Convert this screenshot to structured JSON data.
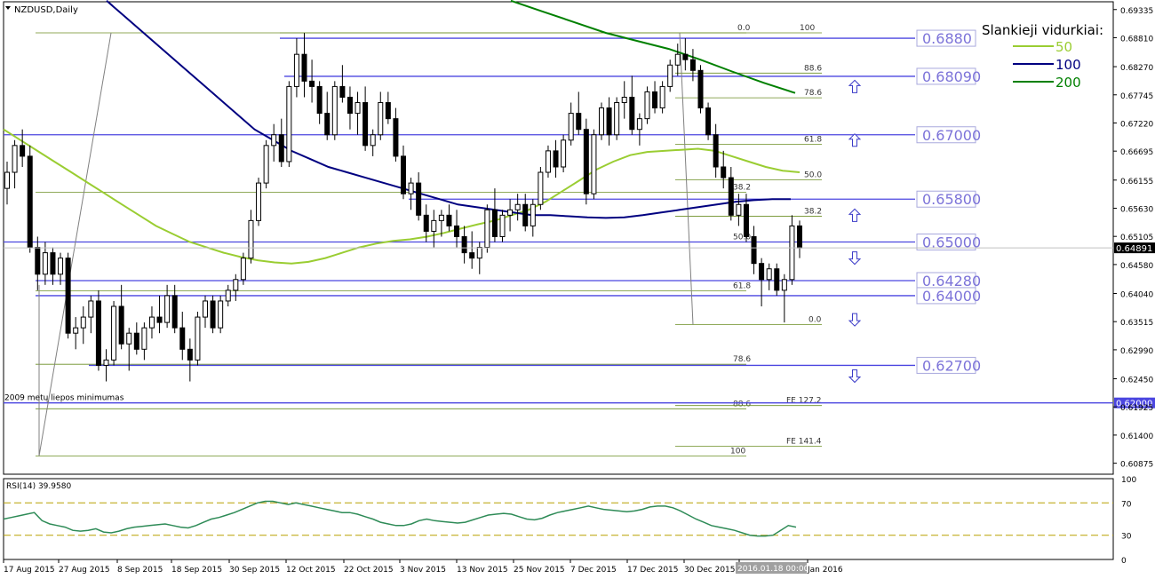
{
  "chart_data": [
    {
      "type": "candlestick",
      "title": "NZDUSD,Daily",
      "ylim": [
        0.6067,
        0.6948
      ],
      "y_ticks": [
        "0.69335",
        "0.68810",
        "0.68270",
        "0.67745",
        "0.67220",
        "0.66695",
        "0.66155",
        "0.65630",
        "0.65105",
        "0.64580",
        "0.64040",
        "0.63515",
        "0.62990",
        "0.62450",
        "0.61925",
        "0.61400",
        "0.60875"
      ],
      "current_price": "0.64891",
      "x_ticks": [
        "17 Aug 2015",
        "27 Aug 2015",
        "8 Sep 2015",
        "18 Sep 2015",
        "30 Sep 2015",
        "12 Oct 2015",
        "22 Oct 2015",
        "3 Nov 2015",
        "13 Nov 2015",
        "25 Nov 2015",
        "7 Dec 2015",
        "17 Dec 2015",
        "30 Dec 2015",
        "2016.01.18 00:00",
        "Jan 2016"
      ],
      "candles": [
        [
          0.66,
          0.665,
          0.657,
          0.663
        ],
        [
          0.663,
          0.669,
          0.66,
          0.668
        ],
        [
          0.668,
          0.671,
          0.664,
          0.666
        ],
        [
          0.666,
          0.668,
          0.648,
          0.649
        ],
        [
          0.649,
          0.651,
          0.641,
          0.644
        ],
        [
          0.644,
          0.65,
          0.642,
          0.648
        ],
        [
          0.648,
          0.649,
          0.642,
          0.644
        ],
        [
          0.644,
          0.648,
          0.642,
          0.647
        ],
        [
          0.647,
          0.648,
          0.632,
          0.633
        ],
        [
          0.633,
          0.636,
          0.63,
          0.634
        ],
        [
          0.634,
          0.638,
          0.631,
          0.636
        ],
        [
          0.636,
          0.64,
          0.633,
          0.639
        ],
        [
          0.639,
          0.641,
          0.626,
          0.627
        ],
        [
          0.627,
          0.63,
          0.624,
          0.628
        ],
        [
          0.628,
          0.639,
          0.627,
          0.638
        ],
        [
          0.638,
          0.642,
          0.63,
          0.631
        ],
        [
          0.631,
          0.634,
          0.626,
          0.633
        ],
        [
          0.633,
          0.635,
          0.629,
          0.63
        ],
        [
          0.63,
          0.635,
          0.628,
          0.634
        ],
        [
          0.634,
          0.638,
          0.632,
          0.636
        ],
        [
          0.636,
          0.64,
          0.633,
          0.635
        ],
        [
          0.635,
          0.642,
          0.634,
          0.64
        ],
        [
          0.64,
          0.642,
          0.633,
          0.634
        ],
        [
          0.634,
          0.637,
          0.628,
          0.63
        ],
        [
          0.63,
          0.632,
          0.624,
          0.628
        ],
        [
          0.628,
          0.637,
          0.627,
          0.636
        ],
        [
          0.636,
          0.64,
          0.634,
          0.639
        ],
        [
          0.639,
          0.64,
          0.633,
          0.634
        ],
        [
          0.634,
          0.64,
          0.633,
          0.639
        ],
        [
          0.639,
          0.642,
          0.638,
          0.641
        ],
        [
          0.641,
          0.644,
          0.639,
          0.643
        ],
        [
          0.643,
          0.648,
          0.642,
          0.647
        ],
        [
          0.647,
          0.656,
          0.646,
          0.654
        ],
        [
          0.654,
          0.662,
          0.653,
          0.661
        ],
        [
          0.661,
          0.669,
          0.66,
          0.668
        ],
        [
          0.668,
          0.672,
          0.665,
          0.67
        ],
        [
          0.67,
          0.673,
          0.664,
          0.665
        ],
        [
          0.665,
          0.68,
          0.664,
          0.679
        ],
        [
          0.679,
          0.688,
          0.677,
          0.685
        ],
        [
          0.685,
          0.689,
          0.677,
          0.68
        ],
        [
          0.68,
          0.684,
          0.676,
          0.679
        ],
        [
          0.679,
          0.68,
          0.672,
          0.674
        ],
        [
          0.674,
          0.678,
          0.669,
          0.67
        ],
        [
          0.67,
          0.68,
          0.669,
          0.679
        ],
        [
          0.679,
          0.683,
          0.676,
          0.677
        ],
        [
          0.677,
          0.679,
          0.671,
          0.674
        ],
        [
          0.674,
          0.678,
          0.67,
          0.676
        ],
        [
          0.676,
          0.679,
          0.667,
          0.668
        ],
        [
          0.668,
          0.671,
          0.666,
          0.67
        ],
        [
          0.67,
          0.678,
          0.669,
          0.676
        ],
        [
          0.676,
          0.678,
          0.672,
          0.673
        ],
        [
          0.673,
          0.675,
          0.665,
          0.666
        ],
        [
          0.666,
          0.668,
          0.658,
          0.659
        ],
        [
          0.659,
          0.662,
          0.656,
          0.661
        ],
        [
          0.661,
          0.663,
          0.654,
          0.655
        ],
        [
          0.655,
          0.657,
          0.65,
          0.652
        ],
        [
          0.652,
          0.656,
          0.649,
          0.654
        ],
        [
          0.654,
          0.656,
          0.651,
          0.655
        ],
        [
          0.655,
          0.657,
          0.652,
          0.653
        ],
        [
          0.653,
          0.656,
          0.649,
          0.651
        ],
        [
          0.651,
          0.653,
          0.646,
          0.648
        ],
        [
          0.648,
          0.652,
          0.645,
          0.647
        ],
        [
          0.647,
          0.65,
          0.644,
          0.649
        ],
        [
          0.649,
          0.657,
          0.648,
          0.656
        ],
        [
          0.656,
          0.66,
          0.65,
          0.651
        ],
        [
          0.651,
          0.656,
          0.65,
          0.655
        ],
        [
          0.655,
          0.658,
          0.652,
          0.656
        ],
        [
          0.656,
          0.659,
          0.654,
          0.657
        ],
        [
          0.657,
          0.659,
          0.652,
          0.653
        ],
        [
          0.653,
          0.658,
          0.651,
          0.657
        ],
        [
          0.657,
          0.664,
          0.656,
          0.663
        ],
        [
          0.663,
          0.668,
          0.662,
          0.667
        ],
        [
          0.667,
          0.669,
          0.662,
          0.664
        ],
        [
          0.664,
          0.67,
          0.663,
          0.669
        ],
        [
          0.669,
          0.676,
          0.668,
          0.674
        ],
        [
          0.674,
          0.678,
          0.67,
          0.671
        ],
        [
          0.671,
          0.673,
          0.657,
          0.659
        ],
        [
          0.659,
          0.671,
          0.658,
          0.67
        ],
        [
          0.67,
          0.676,
          0.669,
          0.675
        ],
        [
          0.675,
          0.677,
          0.668,
          0.67
        ],
        [
          0.67,
          0.677,
          0.669,
          0.676
        ],
        [
          0.676,
          0.68,
          0.673,
          0.677
        ],
        [
          0.677,
          0.681,
          0.67,
          0.671
        ],
        [
          0.671,
          0.674,
          0.668,
          0.673
        ],
        [
          0.673,
          0.679,
          0.672,
          0.678
        ],
        [
          0.678,
          0.68,
          0.674,
          0.675
        ],
        [
          0.675,
          0.68,
          0.674,
          0.679
        ],
        [
          0.679,
          0.684,
          0.678,
          0.683
        ],
        [
          0.683,
          0.687,
          0.681,
          0.685
        ],
        [
          0.685,
          0.688,
          0.682,
          0.684
        ],
        [
          0.684,
          0.686,
          0.68,
          0.682
        ],
        [
          0.682,
          0.683,
          0.674,
          0.675
        ],
        [
          0.675,
          0.676,
          0.669,
          0.67
        ],
        [
          0.67,
          0.672,
          0.662,
          0.664
        ],
        [
          0.664,
          0.667,
          0.66,
          0.662
        ],
        [
          0.662,
          0.664,
          0.654,
          0.655
        ],
        [
          0.655,
          0.659,
          0.653,
          0.657
        ],
        [
          0.657,
          0.659,
          0.65,
          0.651
        ],
        [
          0.651,
          0.653,
          0.644,
          0.646
        ],
        [
          0.646,
          0.647,
          0.638,
          0.643
        ],
        [
          0.643,
          0.646,
          0.641,
          0.645
        ],
        [
          0.645,
          0.646,
          0.64,
          0.641
        ],
        [
          0.641,
          0.644,
          0.635,
          0.643
        ],
        [
          0.643,
          0.655,
          0.642,
          0.653
        ],
        [
          0.653,
          0.654,
          0.647,
          0.6489
        ]
      ],
      "series": [
        {
          "name": "50",
          "color": "#9acd32",
          "values": [
            0.671,
            0.669,
            0.667,
            0.665,
            0.663,
            0.661,
            0.659,
            0.657,
            0.655,
            0.653,
            0.6515,
            0.65,
            0.649,
            0.648,
            0.6472,
            0.6466,
            0.6462,
            0.646,
            0.6463,
            0.647,
            0.648,
            0.649,
            0.6497,
            0.6502,
            0.6505,
            0.651,
            0.6517,
            0.6525,
            0.6533,
            0.654,
            0.655,
            0.656,
            0.6575,
            0.6595,
            0.6615,
            0.6635,
            0.665,
            0.6662,
            0.6668,
            0.667,
            0.6672,
            0.6674,
            0.667,
            0.666,
            0.665,
            0.664,
            0.6633,
            0.663
          ]
        },
        {
          "name": "100",
          "color": "#000080",
          "values": [
            0.695,
            0.692,
            0.689,
            0.686,
            0.683,
            0.68,
            0.677,
            0.674,
            0.671,
            0.669,
            0.667,
            0.6655,
            0.664,
            0.663,
            0.662,
            0.661,
            0.66,
            0.659,
            0.658,
            0.657,
            0.6565,
            0.656,
            0.6555,
            0.655,
            0.655,
            0.6548,
            0.6546,
            0.6545,
            0.6546,
            0.655,
            0.6555,
            0.656,
            0.6565,
            0.657,
            0.6575,
            0.6578,
            0.658,
            0.658
          ]
        },
        {
          "name": "200",
          "color": "#008000",
          "values": [
            0.695,
            0.693,
            0.691,
            0.689,
            0.6875,
            0.686,
            0.684,
            0.6818,
            0.6797,
            0.6778
          ]
        }
      ],
      "horizontal_levels": [
        {
          "value": 0.688,
          "label": "0.6880"
        },
        {
          "value": 0.6809,
          "label": "0.68090"
        },
        {
          "value": 0.67,
          "label": "0.67000"
        },
        {
          "value": 0.658,
          "label": "0.65800"
        },
        {
          "value": 0.65,
          "label": "0.65000"
        },
        {
          "value": 0.6428,
          "label": "0.64280"
        },
        {
          "value": 0.64,
          "label": "0.64000"
        },
        {
          "value": 0.627,
          "label": "0.62700"
        },
        {
          "value": 0.62,
          "label": "0.62000"
        }
      ],
      "fib_levels": [
        {
          "label": "0.0",
          "value": 0.689
        },
        {
          "label": "100",
          "value": 0.689
        },
        {
          "label": "88.6",
          "value": 0.6815
        },
        {
          "label": "78.6",
          "value": 0.6769
        },
        {
          "label": "61.8",
          "value": 0.6682
        },
        {
          "label": "50.0",
          "value": 0.6616
        },
        {
          "label": "38.2",
          "value": 0.6593
        },
        {
          "label": "38.2",
          "value": 0.6548
        },
        {
          "label": "50.0",
          "value": 0.65
        },
        {
          "label": "61.8",
          "value": 0.6409
        },
        {
          "label": "0.0",
          "value": 0.6346
        },
        {
          "label": "78.6",
          "value": 0.6272
        },
        {
          "label": "88.6",
          "value": 0.6189
        },
        {
          "label": "FE 127.2",
          "value": 0.6195
        },
        {
          "label": "FE 141.4",
          "value": 0.6119
        },
        {
          "label": "100",
          "value": 0.6101
        }
      ],
      "annotation": "2009 metų liepos minimumas",
      "legend_title": "Slankieji vidurkiai:"
    },
    {
      "type": "line",
      "title": "RSI(14) 39.9580",
      "ylim": [
        0,
        100
      ],
      "y_ticks": [
        "100",
        "70",
        "30",
        "0"
      ],
      "levels": [
        70,
        30
      ],
      "series": [
        {
          "name": "",
          "color": "#2e8b57",
          "values": [
            50,
            52,
            54,
            56,
            58,
            48,
            44,
            42,
            40,
            36,
            35,
            36,
            38,
            34,
            33,
            35,
            38,
            40,
            41,
            42,
            43,
            44,
            42,
            40,
            39,
            42,
            46,
            50,
            52,
            55,
            58,
            62,
            66,
            70,
            72,
            72,
            70,
            68,
            70,
            68,
            66,
            64,
            62,
            60,
            58,
            58,
            56,
            53,
            50,
            46,
            44,
            42,
            42,
            44,
            48,
            50,
            48,
            47,
            46,
            45,
            46,
            49,
            52,
            55,
            56,
            57,
            56,
            53,
            50,
            49,
            51,
            55,
            58,
            60,
            62,
            64,
            66,
            64,
            62,
            61,
            60,
            59,
            60,
            62,
            65,
            66,
            66,
            64,
            60,
            55,
            50,
            46,
            42,
            40,
            38,
            36,
            33,
            30,
            29,
            29,
            30,
            36,
            42,
            40
          ]
        }
      ]
    }
  ]
}
